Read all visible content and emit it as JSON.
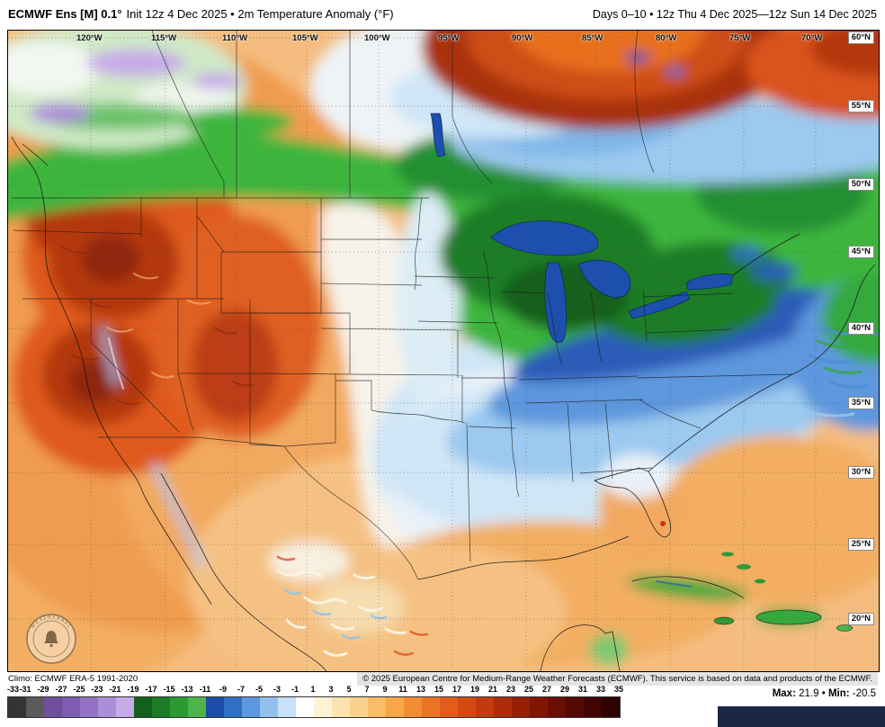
{
  "header": {
    "model_bold": "ECMWF Ens [M] 0.1°",
    "init_text": "Init 12z 4 Dec 2025 • 2m Temperature Anomaly (°F)",
    "valid_text": "Days 0–10 • 12z Thu 4 Dec 2025—12z Sun 14 Dec 2025"
  },
  "map": {
    "lon_labels": [
      "120°W",
      "115°W",
      "110°W",
      "105°W",
      "100°W",
      "95°W",
      "90°W",
      "85°W",
      "80°W",
      "75°W",
      "70°W"
    ],
    "lat_labels": [
      "60°N",
      "55°N",
      "50°N",
      "45°N",
      "40°N",
      "35°N",
      "30°N",
      "25°N",
      "20°N"
    ],
    "logo_text": "WEATHERBELL"
  },
  "footer": {
    "climo_text": "Climo: ECMWF ERA-5 1991-2020",
    "copyright_text": "© 2025 European Centre for Medium-Range Weather Forecasts (ECMWF). This service is based on data and products of the ECMWF."
  },
  "colorbar": {
    "ticks": [
      "-33",
      "-31",
      "-29",
      "-27",
      "-25",
      "-23",
      "-21",
      "-19",
      "-17",
      "-15",
      "-13",
      "-11",
      "-9",
      "-7",
      "-5",
      "-3",
      "-1",
      "1",
      "3",
      "5",
      "7",
      "9",
      "11",
      "13",
      "15",
      "17",
      "19",
      "21",
      "23",
      "25",
      "27",
      "29",
      "31",
      "33",
      "35"
    ],
    "segment_colors": [
      "#343434",
      "#5a5a5a",
      "#6f4f9e",
      "#7f5cb4",
      "#9472c6",
      "#ac8ed8",
      "#c7abe8",
      "#135f1c",
      "#1c7d26",
      "#2b9a33",
      "#4cb449",
      "#1b4da8",
      "#2f6fc4",
      "#5d97dd",
      "#93c1ee",
      "#c6e1f8",
      "#ffffff",
      "#fdf2d4",
      "#fce3b0",
      "#fbd28b",
      "#f9bd67",
      "#f7a648",
      "#f28d33",
      "#ec7424",
      "#e25d1a",
      "#d44a12",
      "#c23a0d",
      "#ad2c09",
      "#971f06",
      "#811504",
      "#6b0d03",
      "#550802",
      "#420401",
      "#2f0201"
    ]
  },
  "stats": {
    "max_label": "Max:",
    "max_value": "21.9",
    "separator": "•",
    "min_label": "Min:",
    "min_value": "-20.5"
  }
}
